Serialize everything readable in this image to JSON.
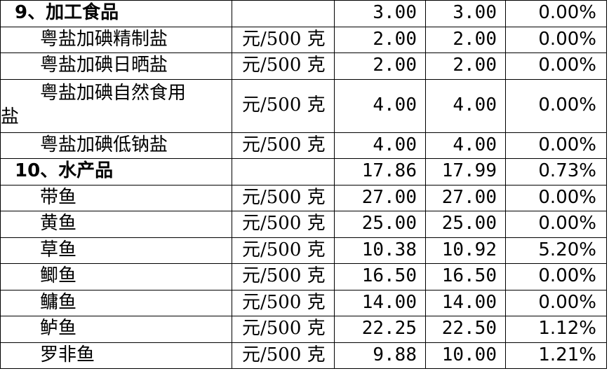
{
  "table": {
    "rows": [
      {
        "type": "category",
        "name": "9、加工食品",
        "unit": "",
        "prev": "3.00",
        "curr": "3.00",
        "change": "0.00%"
      },
      {
        "type": "item",
        "name": "粤盐加碘精制盐",
        "unit": "元/500 克",
        "prev": "2.00",
        "curr": "2.00",
        "change": "0.00%"
      },
      {
        "type": "item",
        "name": "粤盐加碘日晒盐",
        "unit": "元/500 克",
        "prev": "2.00",
        "curr": "2.00",
        "change": "0.00%"
      },
      {
        "type": "item-wrap",
        "name_line1": "粤盐加碘自然食用",
        "name_line2": "盐",
        "unit": "元/500 克",
        "prev": "4.00",
        "curr": "4.00",
        "change": "0.00%"
      },
      {
        "type": "item",
        "name": "粤盐加碘低钠盐",
        "unit": "元/500 克",
        "prev": "4.00",
        "curr": "4.00",
        "change": "0.00%"
      },
      {
        "type": "category",
        "name": "10、水产品",
        "unit": "",
        "prev": "17.86",
        "curr": "17.99",
        "change": "0.73%"
      },
      {
        "type": "item",
        "name": "带鱼",
        "unit": "元/500 克",
        "prev": "27.00",
        "curr": "27.00",
        "change": "0.00%"
      },
      {
        "type": "item",
        "name": "黄鱼",
        "unit": "元/500 克",
        "prev": "25.00",
        "curr": "25.00",
        "change": "0.00%"
      },
      {
        "type": "item",
        "name": "草鱼",
        "unit": "元/500 克",
        "prev": "10.38",
        "curr": "10.92",
        "change": "5.20%"
      },
      {
        "type": "item",
        "name": "鲫鱼",
        "unit": "元/500 克",
        "prev": "16.50",
        "curr": "16.50",
        "change": "0.00%"
      },
      {
        "type": "item",
        "name": "鳙鱼",
        "unit": "元/500 克",
        "prev": "14.00",
        "curr": "14.00",
        "change": "0.00%"
      },
      {
        "type": "item",
        "name": "鲈鱼",
        "unit": "元/500 克",
        "prev": "22.25",
        "curr": "22.50",
        "change": "1.12%"
      },
      {
        "type": "item",
        "name": "罗非鱼",
        "unit": "元/500 克",
        "prev": "9.88",
        "curr": "10.00",
        "change": "1.21%"
      }
    ]
  }
}
